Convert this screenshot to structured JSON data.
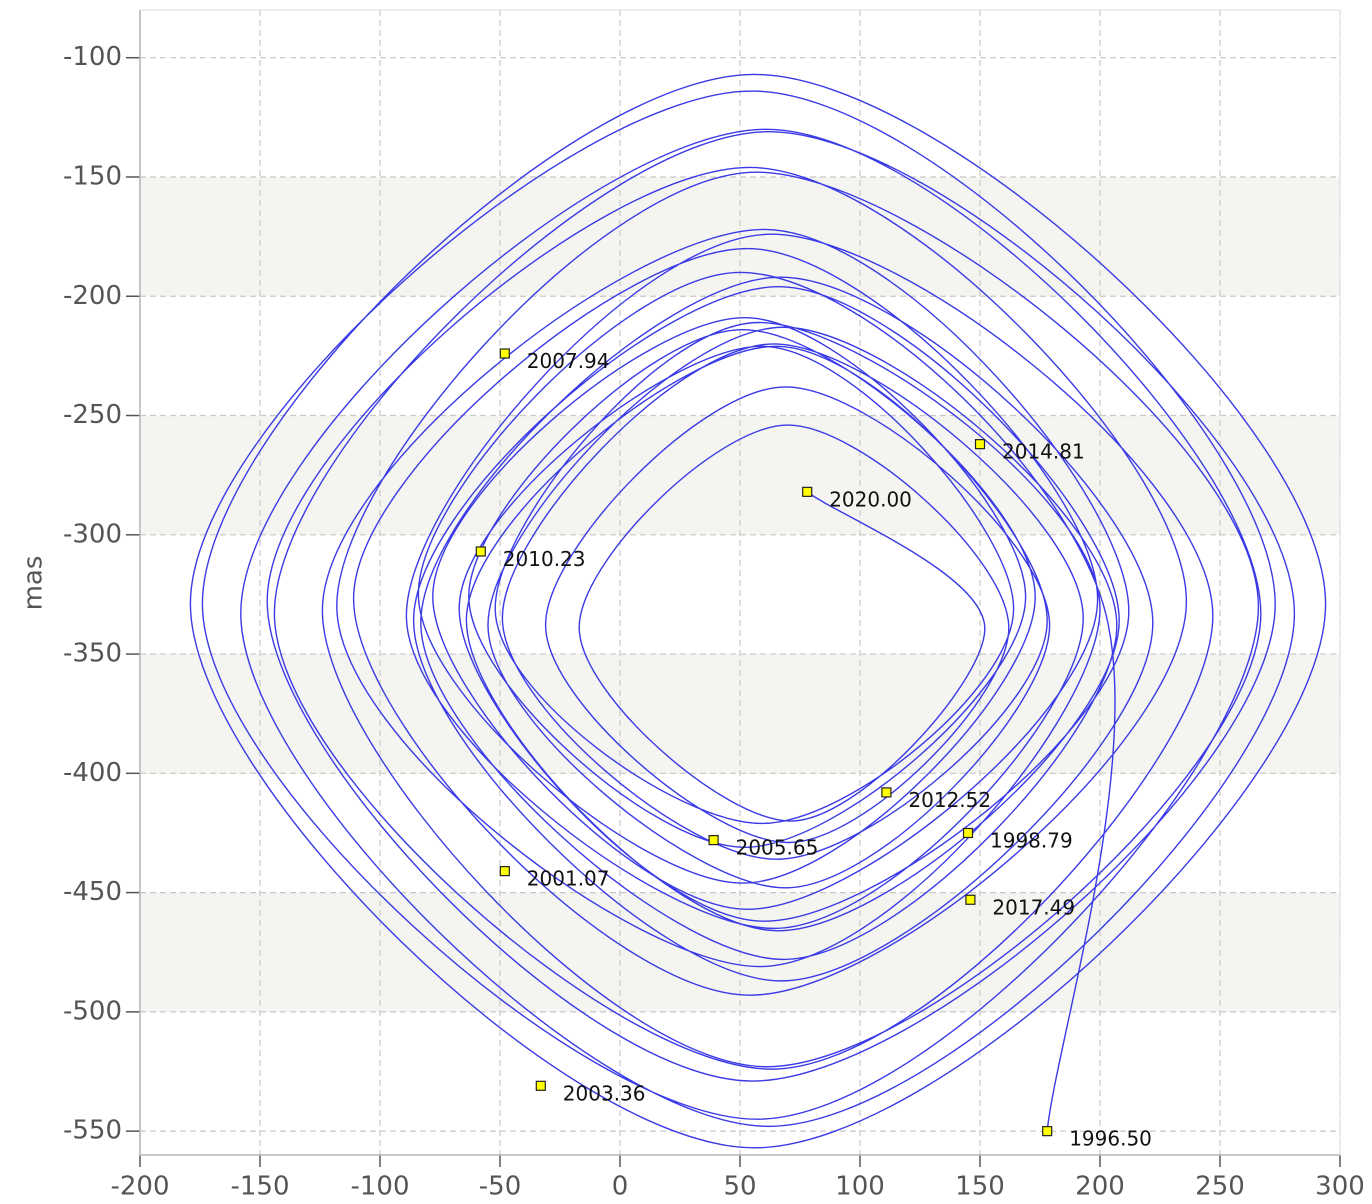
{
  "chart_data": {
    "type": "line",
    "y_label": "mas",
    "xlim": [
      -200,
      300
    ],
    "ylim": [
      -560,
      -80
    ],
    "xticks": [
      -200,
      -150,
      -100,
      -50,
      0,
      50,
      100,
      150,
      200,
      250,
      300
    ],
    "yticks": [
      -550,
      -500,
      -450,
      -400,
      -350,
      -300,
      -250,
      -200,
      -150,
      -100
    ],
    "grid": true,
    "alternate_bands": true,
    "band_color": "#f4f4f0",
    "color": "#3a3ae6",
    "marker_color": "#ffff00",
    "x": [
      178,
      200,
      50,
      -84,
      51,
      173,
      51,
      -63,
      52,
      169,
      52,
      -78,
      53,
      199,
      53,
      -111,
      54,
      236,
      54,
      -147,
      55,
      273,
      55,
      -179,
      56,
      294,
      56,
      -174,
      57,
      266,
      57,
      -118,
      58,
      200,
      58,
      -52,
      59,
      164,
      59,
      -67,
      60,
      212,
      60,
      -124,
      61,
      267,
      61,
      -158,
      62,
      281,
      62,
      -144,
      63,
      247,
      63,
      -89,
      64,
      193,
      64,
      -49,
      65,
      178,
      65,
      -64,
      66,
      208,
      66,
      -86,
      67,
      222,
      67,
      -83,
      68,
      207,
      68,
      -55,
      69,
      179,
      69,
      -31,
      70,
      162,
      70,
      -17,
      71,
      152,
      78
    ],
    "values": [
      -550,
      -325,
      -190,
      -325,
      -446,
      -326,
      -214,
      -326,
      -431,
      -326,
      -209,
      -326,
      -457,
      -327,
      -180,
      -327,
      -493,
      -328,
      -146,
      -328,
      -529,
      -329,
      -114,
      -329,
      -557,
      -329,
      -107,
      -329,
      -545,
      -330,
      -148,
      -330,
      -481,
      -331,
      -211,
      -331,
      -421,
      -331,
      -221,
      -331,
      -462,
      -332,
      -172,
      -332,
      -523,
      -333,
      -130,
      -333,
      -548,
      -333,
      -131,
      -333,
      -524,
      -334,
      -174,
      -334,
      -465,
      -335,
      -220,
      -335,
      -436,
      -336,
      -221,
      -336,
      -466,
      -336,
      -196,
      -336,
      -487,
      -337,
      -192,
      -337,
      -478,
      -338,
      -213,
      -338,
      -448,
      -338,
      -238,
      -338,
      -429,
      -339,
      -254,
      -339,
      -420,
      -340,
      -282
    ],
    "annotations": [
      {
        "x": 178,
        "y": -550,
        "label": "1996.50"
      },
      {
        "x": 145,
        "y": -425,
        "label": "1998.79"
      },
      {
        "x": -48,
        "y": -441,
        "label": "2001.07"
      },
      {
        "x": -33,
        "y": -531,
        "label": "2003.36"
      },
      {
        "x": 39,
        "y": -428,
        "label": "2005.65"
      },
      {
        "x": -48,
        "y": -224,
        "label": "2007.94"
      },
      {
        "x": -58,
        "y": -307,
        "label": "2010.23"
      },
      {
        "x": 111,
        "y": -408,
        "label": "2012.52"
      },
      {
        "x": 150,
        "y": -262,
        "label": "2014.81"
      },
      {
        "x": 146,
        "y": -453,
        "label": "2017.49"
      },
      {
        "x": 78,
        "y": -282,
        "label": "2020.00"
      }
    ]
  }
}
